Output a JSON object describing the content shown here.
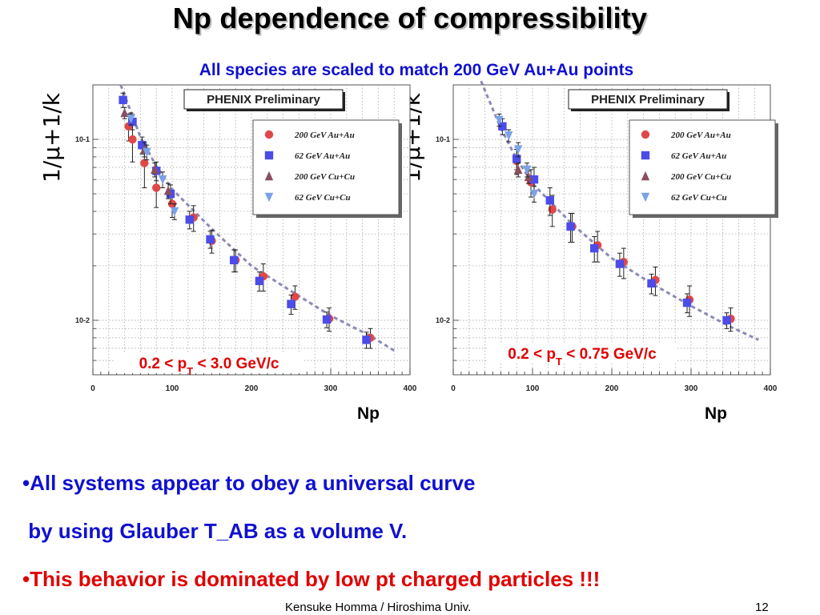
{
  "slide": {
    "title": "Np dependence of compressibility",
    "subtitle": "All species are scaled to match 200 GeV Au+Au points",
    "bullets": [
      {
        "text": "•All systems appear to obey a universal curve",
        "color": "#1010d0"
      },
      {
        "text": " by using Glauber T_AB as a volume V.",
        "color": "#1010d0"
      },
      {
        "text": "•This behavior is dominated by low pt charged particles !!!",
        "color": "#e00000"
      }
    ],
    "footer_left": "Kensuke Homma / Hiroshima Univ.",
    "footer_right": "12"
  },
  "chart_data": [
    {
      "type": "scatter",
      "xlabel": "Np",
      "ylabel": "1/μ+1/k",
      "yscale": "log",
      "xlim": [
        0,
        400
      ],
      "ylim": [
        0.005,
        0.2
      ],
      "grid": true,
      "watermark": "PHENIX Preliminary",
      "annotation": "0.2 < pT < 3.0 GeV/c",
      "xticks": [
        "0",
        "100",
        "200",
        "300",
        "400"
      ],
      "yticks": [
        {
          "value": 0.1,
          "label": "10-1"
        },
        {
          "value": 0.01,
          "label": "10-2"
        }
      ],
      "legend_position": "top-right",
      "series": [
        {
          "name": "200 GeV Au+Au",
          "marker": "circle",
          "color": "#e04848",
          "points": [
            [
              45,
              0.118
            ],
            [
              50,
              0.1
            ],
            [
              65,
              0.074
            ],
            [
              80,
              0.054
            ],
            [
              100,
              0.044
            ],
            [
              127,
              0.037
            ],
            [
              150,
              0.0275
            ],
            [
              180,
              0.0215
            ],
            [
              215,
              0.0175
            ],
            [
              255,
              0.0135
            ],
            [
              298,
              0.0102
            ],
            [
              350,
              0.008
            ]
          ],
          "errors": [
            0.02,
            0.025,
            0.02,
            0.012,
            0.007,
            0.006,
            0.004,
            0.003,
            0.003,
            0.002,
            0.0015,
            0.001
          ]
        },
        {
          "name": "62 GeV Au+Au",
          "marker": "square",
          "color": "#4c4ce8",
          "points": [
            [
              38,
              0.165
            ],
            [
              50,
              0.125
            ],
            [
              62,
              0.093
            ],
            [
              80,
              0.067
            ],
            [
              98,
              0.05
            ],
            [
              122,
              0.036
            ],
            [
              148,
              0.028
            ],
            [
              178,
              0.0215
            ],
            [
              210,
              0.0165
            ],
            [
              250,
              0.0123
            ],
            [
              295,
              0.0101
            ],
            [
              345,
              0.0078
            ]
          ],
          "errors": [
            0.015,
            0.012,
            0.01,
            0.008,
            0.006,
            0.004,
            0.003,
            0.003,
            0.002,
            0.0015,
            0.001,
            0.0008
          ]
        },
        {
          "name": "200 GeV Cu+Cu",
          "marker": "triangle-up",
          "color": "#8a4e5e",
          "points": [
            [
              40,
              0.14
            ],
            [
              65,
              0.088
            ],
            [
              78,
              0.068
            ],
            [
              95,
              0.052
            ]
          ],
          "errors": [
            0.01,
            0.008,
            0.006,
            0.005
          ]
        },
        {
          "name": "62 GeV Cu+Cu",
          "marker": "triangle-down",
          "color": "#7aa2e8",
          "points": [
            [
              48,
              0.13
            ],
            [
              68,
              0.085
            ],
            [
              88,
              0.06
            ],
            [
              103,
              0.04
            ]
          ],
          "errors": [
            0.01,
            0.008,
            0.006,
            0.004
          ]
        }
      ],
      "fit_curve": [
        [
          35,
          0.2
        ],
        [
          60,
          0.103
        ],
        [
          80,
          0.071
        ],
        [
          100,
          0.053
        ],
        [
          150,
          0.032
        ],
        [
          200,
          0.02
        ],
        [
          250,
          0.0145
        ],
        [
          300,
          0.0106
        ],
        [
          350,
          0.0082
        ],
        [
          380,
          0.0068
        ]
      ]
    },
    {
      "type": "scatter",
      "xlabel": "Np",
      "ylabel": "1/μ+1/k",
      "yscale": "log",
      "xlim": [
        0,
        400
      ],
      "ylim": [
        0.005,
        0.2
      ],
      "grid": true,
      "watermark": "PHENIX Preliminary",
      "annotation": "0.2 < pT < 0.75 GeV/c",
      "xticks": [
        "0",
        "100",
        "200",
        "300",
        "400"
      ],
      "yticks": [
        {
          "value": 0.1,
          "label": "10-1"
        },
        {
          "value": 0.01,
          "label": "10-2"
        }
      ],
      "legend_position": "top-right",
      "series": [
        {
          "name": "200 GeV Au+Au",
          "marker": "circle",
          "color": "#e04848",
          "points": [
            [
              80,
              0.076
            ],
            [
              98,
              0.058
            ],
            [
              125,
              0.041
            ],
            [
              150,
              0.033
            ],
            [
              182,
              0.026
            ],
            [
              215,
              0.021
            ],
            [
              255,
              0.0167
            ],
            [
              298,
              0.013
            ],
            [
              350,
              0.0102
            ]
          ],
          "errors": [
            0.012,
            0.01,
            0.008,
            0.006,
            0.005,
            0.004,
            0.003,
            0.0025,
            0.0015
          ]
        },
        {
          "name": "62 GeV Au+Au",
          "marker": "square",
          "color": "#4c4ce8",
          "points": [
            [
              62,
              0.118
            ],
            [
              80,
              0.078
            ],
            [
              102,
              0.06
            ],
            [
              122,
              0.046
            ],
            [
              148,
              0.033
            ],
            [
              178,
              0.025
            ],
            [
              210,
              0.0205
            ],
            [
              250,
              0.016
            ],
            [
              295,
              0.0125
            ],
            [
              345,
              0.01
            ]
          ],
          "errors": [
            0.012,
            0.01,
            0.01,
            0.008,
            0.006,
            0.004,
            0.003,
            0.002,
            0.0015,
            0.001
          ]
        },
        {
          "name": "200 GeV Cu+Cu",
          "marker": "triangle-up",
          "color": "#8a4e5e",
          "points": [
            [
              82,
              0.068
            ],
            [
              95,
              0.062
            ]
          ],
          "errors": [
            0.006,
            0.005
          ]
        },
        {
          "name": "62 GeV Cu+Cu",
          "marker": "triangle-down",
          "color": "#7aa2e8",
          "points": [
            [
              58,
              0.128
            ],
            [
              70,
              0.105
            ],
            [
              82,
              0.088
            ],
            [
              93,
              0.068
            ],
            [
              102,
              0.05
            ]
          ],
          "errors": [
            0.01,
            0.008,
            0.008,
            0.006,
            0.005
          ]
        }
      ],
      "fit_curve": [
        [
          35,
          0.21
        ],
        [
          60,
          0.115
        ],
        [
          80,
          0.078
        ],
        [
          100,
          0.057
        ],
        [
          150,
          0.034
        ],
        [
          200,
          0.022
        ],
        [
          250,
          0.016
        ],
        [
          300,
          0.012
        ],
        [
          350,
          0.0092
        ],
        [
          385,
          0.0078
        ]
      ]
    }
  ]
}
